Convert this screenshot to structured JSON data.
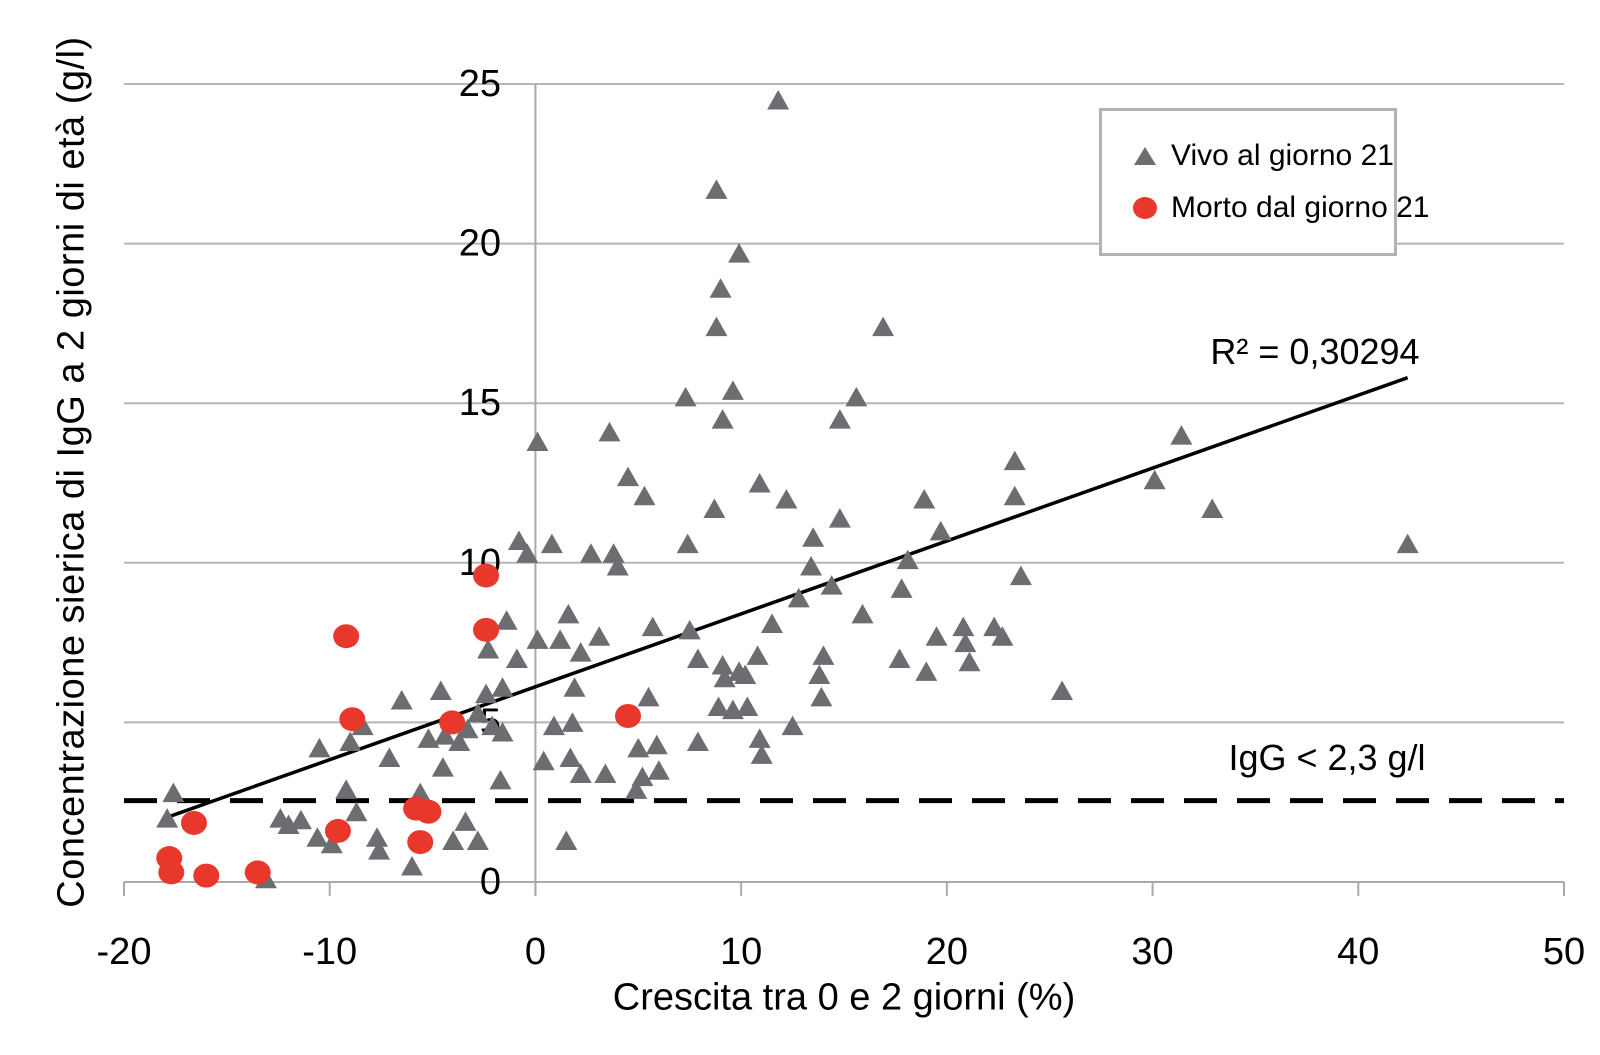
{
  "chart_data": {
    "type": "scatter",
    "title": "",
    "xlabel": "Crescita tra 0 e 2 giorni (%)",
    "ylabel": "Concentrazione sierica di IgG a 2 giorni di età (g/l)",
    "xlim": [
      -20,
      50
    ],
    "ylim": [
      0,
      25
    ],
    "x_ticks": [
      -20,
      -10,
      0,
      10,
      20,
      30,
      40,
      50
    ],
    "y_ticks": [
      0,
      5,
      10,
      15,
      20,
      25
    ],
    "grid": "horizontal",
    "legend_position": "top-right",
    "series": [
      {
        "name": "Vivo al giorno 21",
        "marker": "triangle",
        "color": "#6c6d70",
        "points": [
          [
            11.8,
            24.5
          ],
          [
            8.8,
            21.7
          ],
          [
            9.9,
            19.7
          ],
          [
            9.0,
            18.6
          ],
          [
            8.8,
            17.4
          ],
          [
            16.9,
            17.4
          ],
          [
            7.3,
            15.2
          ],
          [
            9.6,
            15.4
          ],
          [
            9.1,
            14.5
          ],
          [
            15.6,
            15.2
          ],
          [
            14.8,
            14.5
          ],
          [
            0.1,
            13.8
          ],
          [
            3.6,
            14.1
          ],
          [
            31.4,
            14.0
          ],
          [
            30.1,
            12.6
          ],
          [
            32.9,
            11.7
          ],
          [
            42.4,
            10.6
          ],
          [
            4.5,
            12.7
          ],
          [
            5.3,
            12.1
          ],
          [
            8.7,
            11.7
          ],
          [
            10.9,
            12.5
          ],
          [
            12.2,
            12.0
          ],
          [
            14.8,
            11.4
          ],
          [
            18.9,
            12.0
          ],
          [
            23.3,
            13.2
          ],
          [
            23.3,
            12.1
          ],
          [
            19.7,
            11.0
          ],
          [
            7.4,
            10.6
          ],
          [
            2.7,
            10.3
          ],
          [
            3.8,
            10.3
          ],
          [
            4.0,
            9.9
          ],
          [
            -0.8,
            10.7
          ],
          [
            -0.4,
            10.3
          ],
          [
            0.8,
            10.6
          ],
          [
            13.4,
            9.9
          ],
          [
            14.4,
            9.3
          ],
          [
            13.5,
            10.8
          ],
          [
            18.1,
            10.1
          ],
          [
            23.6,
            9.6
          ],
          [
            12.8,
            8.9
          ],
          [
            17.8,
            9.2
          ],
          [
            15.9,
            8.4
          ],
          [
            11.5,
            8.1
          ],
          [
            1.6,
            8.4
          ],
          [
            -1.4,
            8.2
          ],
          [
            -2.3,
            7.3
          ],
          [
            -0.9,
            7.0
          ],
          [
            0.1,
            7.6
          ],
          [
            1.2,
            7.6
          ],
          [
            3.1,
            7.7
          ],
          [
            2.2,
            7.2
          ],
          [
            5.7,
            8.0
          ],
          [
            7.5,
            7.9
          ],
          [
            7.9,
            7.0
          ],
          [
            9.1,
            6.8
          ],
          [
            9.2,
            6.4
          ],
          [
            9.9,
            6.6
          ],
          [
            10.2,
            6.5
          ],
          [
            10.8,
            7.1
          ],
          [
            8.9,
            5.5
          ],
          [
            9.6,
            5.4
          ],
          [
            10.3,
            5.5
          ],
          [
            5.5,
            5.8
          ],
          [
            14.0,
            7.1
          ],
          [
            13.8,
            6.5
          ],
          [
            13.9,
            5.8
          ],
          [
            17.7,
            7.0
          ],
          [
            19.0,
            6.6
          ],
          [
            19.5,
            7.7
          ],
          [
            20.8,
            8.0
          ],
          [
            20.9,
            7.5
          ],
          [
            21.1,
            6.9
          ],
          [
            22.3,
            8.0
          ],
          [
            22.7,
            7.7
          ],
          [
            25.6,
            6.0
          ],
          [
            -6.5,
            5.7
          ],
          [
            -4.6,
            6.0
          ],
          [
            -5.2,
            4.5
          ],
          [
            -4.4,
            4.6
          ],
          [
            -3.7,
            4.4
          ],
          [
            -3.3,
            4.8
          ],
          [
            -2.8,
            5.3
          ],
          [
            -2.1,
            4.9
          ],
          [
            -1.6,
            4.7
          ],
          [
            -2.4,
            5.9
          ],
          [
            -1.6,
            6.1
          ],
          [
            1.9,
            6.1
          ],
          [
            -10.5,
            4.2
          ],
          [
            -9.0,
            4.4
          ],
          [
            -8.4,
            4.9
          ],
          [
            -7.1,
            3.9
          ],
          [
            0.9,
            4.9
          ],
          [
            1.8,
            5.0
          ],
          [
            -9.2,
            2.9
          ],
          [
            -17.6,
            2.8
          ],
          [
            -17.9,
            2.0
          ],
          [
            -12.4,
            2.0
          ],
          [
            -12.0,
            1.8
          ],
          [
            -11.4,
            1.95
          ],
          [
            -10.6,
            1.4
          ],
          [
            -9.9,
            1.2
          ],
          [
            -8.7,
            2.2
          ],
          [
            -7.7,
            1.4
          ],
          [
            -7.6,
            1.0
          ],
          [
            -5.6,
            2.8
          ],
          [
            -4.5,
            3.6
          ],
          [
            -6.0,
            0.5
          ],
          [
            -13.1,
            0.1
          ],
          [
            -4.0,
            1.3
          ],
          [
            -2.8,
            1.3
          ],
          [
            -3.4,
            1.9
          ],
          [
            -1.7,
            3.2
          ],
          [
            1.5,
            1.3
          ],
          [
            1.7,
            3.9
          ],
          [
            2.2,
            3.4
          ],
          [
            3.4,
            3.4
          ],
          [
            5.0,
            4.2
          ],
          [
            5.9,
            4.3
          ],
          [
            5.2,
            3.3
          ],
          [
            6.0,
            3.5
          ],
          [
            4.9,
            2.9
          ],
          [
            0.4,
            3.8
          ],
          [
            7.9,
            4.4
          ],
          [
            10.9,
            4.5
          ],
          [
            11.0,
            4.0
          ],
          [
            12.5,
            4.9
          ]
        ]
      },
      {
        "name": "Morto dal giorno 21",
        "marker": "circle",
        "color": "#e8382c",
        "points": [
          [
            -17.8,
            0.75
          ],
          [
            -17.7,
            0.3
          ],
          [
            -16.6,
            1.85
          ],
          [
            -16.0,
            0.2
          ],
          [
            -13.5,
            0.3
          ],
          [
            -9.6,
            1.6
          ],
          [
            -9.2,
            7.7
          ],
          [
            -8.9,
            5.1
          ],
          [
            -5.8,
            2.3
          ],
          [
            -5.2,
            2.2
          ],
          [
            -5.6,
            1.25
          ],
          [
            -4.05,
            5.0
          ],
          [
            -2.4,
            9.6
          ],
          [
            -2.4,
            7.9
          ],
          [
            4.5,
            5.2
          ]
        ]
      }
    ],
    "trendline": {
      "x1": -17.8,
      "y1": 2.05,
      "x2": 42.4,
      "y2": 15.8,
      "color": "#000000",
      "r2_label": "R² = 0,30294"
    },
    "threshold": {
      "label": "IgG < 2,3 g/l",
      "cutoff": 2.3,
      "line_y": 2.55,
      "style": "dashed",
      "color": "#000000"
    }
  },
  "style_colors": {
    "gridline": "#b5b5b5",
    "axis": "#a9a9a9",
    "tick_text": "#000000",
    "legend_border": "#b3b3b3",
    "background": "#ffffff"
  }
}
